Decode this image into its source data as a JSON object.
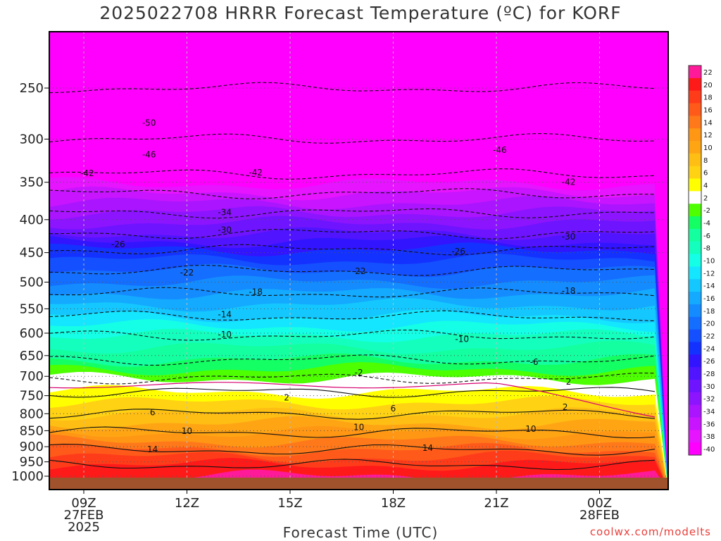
{
  "title": "2025022708 HRRR Forecast Temperature (ºC) for KORF",
  "xlabel": "Forecast Time (UTC)",
  "credit": "coolwx.com/modelts",
  "chart_data": {
    "type": "heatmap",
    "title": "2025022708 HRRR Forecast Temperature (ºC) for KORF",
    "xlabel": "Forecast Time (UTC)",
    "ylabel": "",
    "x_ticks": [
      {
        "label": [
          "09Z",
          "27FEB",
          "2025"
        ]
      },
      {
        "label": [
          "12Z"
        ]
      },
      {
        "label": [
          "15Z"
        ]
      },
      {
        "label": [
          "18Z"
        ]
      },
      {
        "label": [
          "21Z"
        ]
      },
      {
        "label": [
          "00Z",
          "28FEB"
        ]
      }
    ],
    "x_hours": [
      9,
      12,
      15,
      18,
      21,
      24
    ],
    "x_range_hours": [
      8,
      26
    ],
    "y_ticks": [
      250,
      300,
      350,
      400,
      450,
      500,
      550,
      600,
      650,
      700,
      750,
      800,
      850,
      900,
      950,
      1000
    ],
    "y_range_hpa": [
      200,
      1025
    ],
    "y_scale": "log",
    "colorbar": {
      "levels": [
        22,
        20,
        18,
        16,
        14,
        12,
        10,
        8,
        6,
        4,
        2,
        -2,
        -4,
        -6,
        -8,
        -10,
        -12,
        -14,
        -16,
        -18,
        -20,
        -22,
        -24,
        -26,
        -28,
        -30,
        -32,
        -34,
        -36,
        -38,
        -40
      ],
      "colors": [
        "#ff1a9a",
        "#ff1a1a",
        "#ff3c1a",
        "#ff5a1a",
        "#ff781a",
        "#ff9614",
        "#ffa514",
        "#ffbe14",
        "#ffd214",
        "#ffff00",
        "#ffffff",
        "#4dff00",
        "#14ff64",
        "#14ffa0",
        "#14ffbe",
        "#14ffe6",
        "#14e6ff",
        "#14c8ff",
        "#14aaff",
        "#148cff",
        "#146eff",
        "#1450ff",
        "#1432ff",
        "#3214ff",
        "#5014ff",
        "#6e14ff",
        "#8c14ff",
        "#aa14ff",
        "#c814ff",
        "#e614ff",
        "#ff00ff"
      ]
    },
    "temperature_profile": [
      {
        "p": 250,
        "t": -50
      },
      {
        "p": 300,
        "t": -46
      },
      {
        "p": 340,
        "t": -42
      },
      {
        "p": 390,
        "t": -34
      },
      {
        "p": 420,
        "t": -30
      },
      {
        "p": 445,
        "t": -26
      },
      {
        "p": 480,
        "t": -22
      },
      {
        "p": 520,
        "t": -18
      },
      {
        "p": 565,
        "t": -14
      },
      {
        "p": 605,
        "t": -10
      },
      {
        "p": 660,
        "t": -6
      },
      {
        "p": 705,
        "t": -2
      },
      {
        "p": 740,
        "t": 2
      },
      {
        "p": 800,
        "t": 6
      },
      {
        "p": 855,
        "t": 10
      },
      {
        "p": 910,
        "t": 14
      },
      {
        "p": 960,
        "t": 18
      },
      {
        "p": 1000,
        "t": 20
      }
    ],
    "contour_labels": [
      {
        "text": "-50",
        "hour": 10.9,
        "p": 283
      },
      {
        "text": "-46",
        "hour": 10.9,
        "p": 317
      },
      {
        "text": "-46",
        "hour": 21.1,
        "p": 312
      },
      {
        "text": "-42",
        "hour": 9.1,
        "p": 339
      },
      {
        "text": "-42",
        "hour": 14.0,
        "p": 338
      },
      {
        "text": "-42",
        "hour": 23.1,
        "p": 350
      },
      {
        "text": "-34",
        "hour": 13.1,
        "p": 390
      },
      {
        "text": "-30",
        "hour": 13.1,
        "p": 415
      },
      {
        "text": "-30",
        "hour": 23.1,
        "p": 425
      },
      {
        "text": "-26",
        "hour": 10.0,
        "p": 437
      },
      {
        "text": "-26",
        "hour": 19.9,
        "p": 448
      },
      {
        "text": "-22",
        "hour": 12.0,
        "p": 483
      },
      {
        "text": "-22",
        "hour": 17.0,
        "p": 481
      },
      {
        "text": "-18",
        "hour": 14.0,
        "p": 518
      },
      {
        "text": "-18",
        "hour": 23.1,
        "p": 516
      },
      {
        "text": "-14",
        "hour": 13.1,
        "p": 561
      },
      {
        "text": "-10",
        "hour": 13.1,
        "p": 603
      },
      {
        "text": "-10",
        "hour": 20.0,
        "p": 613
      },
      {
        "text": "-6",
        "hour": 22.1,
        "p": 665
      },
      {
        "text": "-2",
        "hour": 17.0,
        "p": 691
      },
      {
        "text": "2",
        "hour": 23.1,
        "p": 714
      },
      {
        "text": "2",
        "hour": 14.9,
        "p": 755
      },
      {
        "text": "2",
        "hour": 23.0,
        "p": 781
      },
      {
        "text": "6",
        "hour": 11.0,
        "p": 796
      },
      {
        "text": "6",
        "hour": 18.0,
        "p": 785
      },
      {
        "text": "10",
        "hour": 12.0,
        "p": 851
      },
      {
        "text": "10",
        "hour": 17.0,
        "p": 840
      },
      {
        "text": "10",
        "hour": 22.0,
        "p": 845
      },
      {
        "text": "14",
        "hour": 11.0,
        "p": 909
      },
      {
        "text": "14",
        "hour": 19.0,
        "p": 904
      }
    ]
  }
}
